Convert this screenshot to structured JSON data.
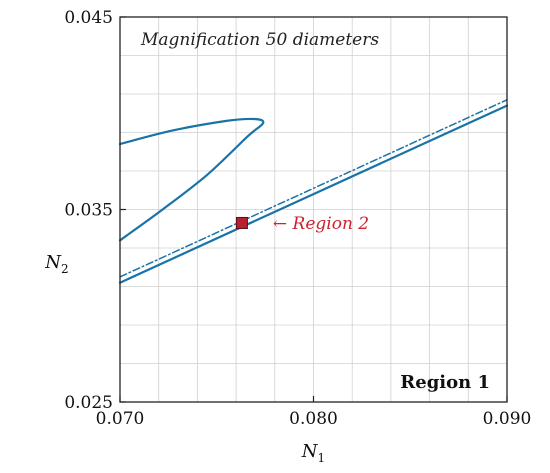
{
  "chart_data": {
    "type": "line",
    "xlabel": "N",
    "xlabel_sub": "1",
    "ylabel": "N",
    "ylabel_sub": "2",
    "xlim": [
      0.07,
      0.09
    ],
    "ylim": [
      0.025,
      0.045
    ],
    "xticks": [
      0.07,
      0.08,
      0.09
    ],
    "xtick_labels": [
      "0.070",
      "0.080",
      "0.090"
    ],
    "yticks": [
      0.025,
      0.035,
      0.045
    ],
    "ytick_labels": [
      "0.025",
      "0.035",
      "0.045"
    ],
    "grid": true,
    "colors": {
      "curve": "#1a73a8",
      "marker": "#b8202e",
      "annotation": "#cc2233",
      "grid": "#d0d0d0"
    },
    "series": [
      {
        "style": "solid",
        "x": [
          0.07,
          0.0727,
          0.0755,
          0.0769,
          0.0774,
          0.0766,
          0.0745,
          0.0722,
          0.07
        ],
        "y": [
          0.0384,
          0.0391,
          0.0396,
          0.0397,
          0.0395,
          0.0388,
          0.0368,
          0.035,
          0.0334
        ]
      },
      {
        "style": "solid",
        "x": [
          0.07,
          0.08,
          0.09
        ],
        "y": [
          0.0312,
          0.0358,
          0.0404
        ]
      },
      {
        "style": "dashdot",
        "x": [
          0.07,
          0.08,
          0.09
        ],
        "y": [
          0.0315,
          0.0361,
          0.0407
        ]
      }
    ],
    "marker": {
      "x": 0.0763,
      "y": 0.0343
    },
    "annotations": {
      "magnification": "Magnification 50 diameters",
      "region1": "Region 1",
      "region2": "← Region 2"
    }
  }
}
